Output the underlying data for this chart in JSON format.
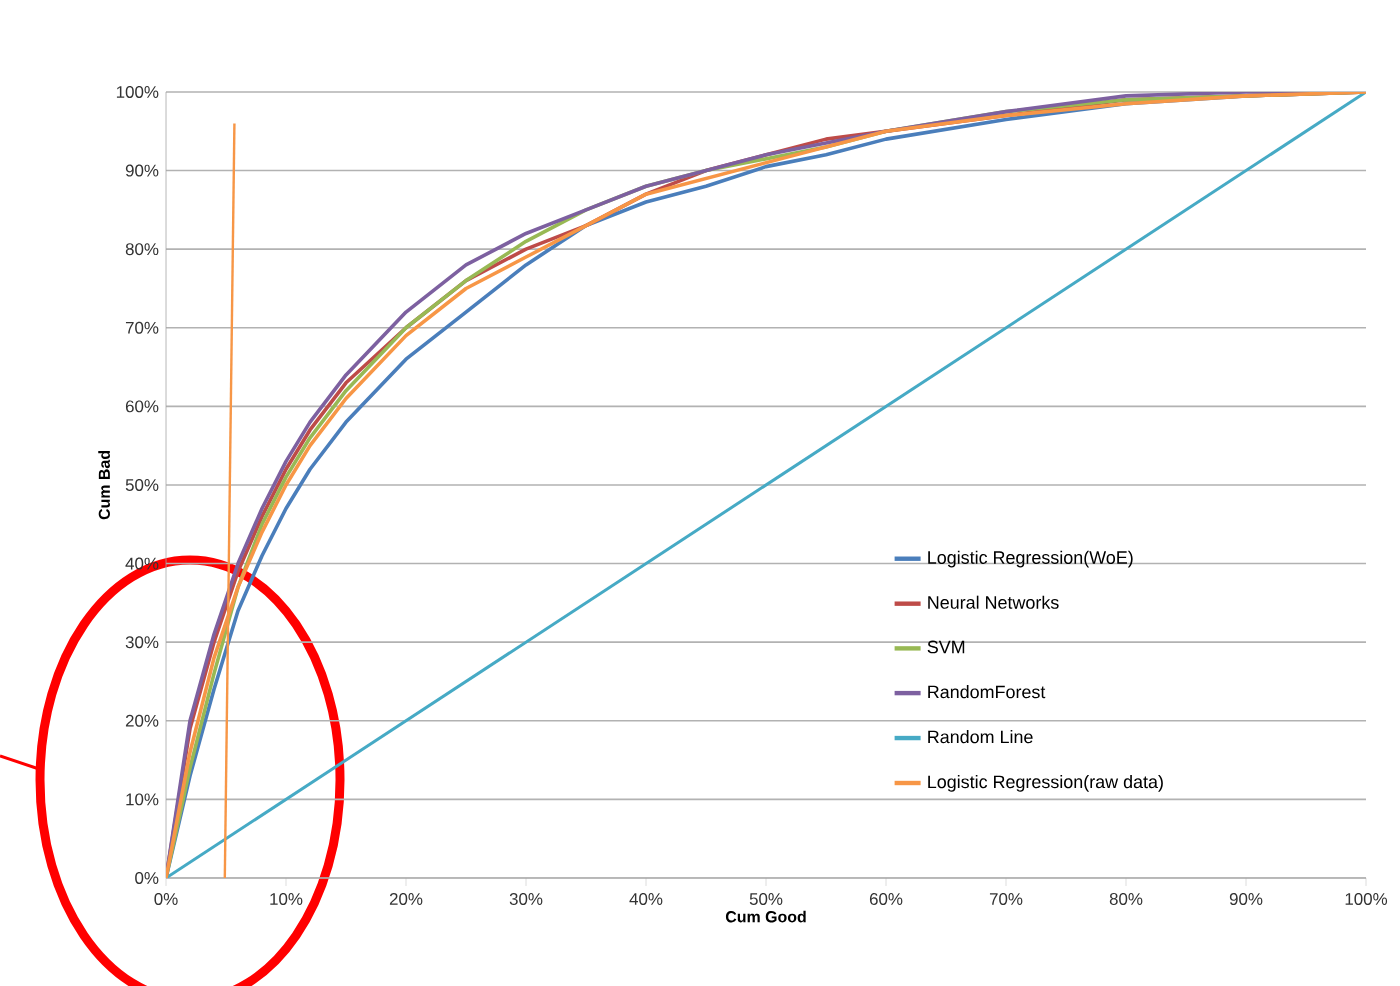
{
  "chart_data": {
    "type": "line",
    "xlabel": "Cum Good",
    "ylabel": "Cum Bad",
    "xlim": [
      0,
      100
    ],
    "ylim": [
      0,
      100
    ],
    "xticks": [
      {
        "value": 0,
        "label": "0%"
      },
      {
        "value": 10,
        "label": "10%"
      },
      {
        "value": 20,
        "label": "20%"
      },
      {
        "value": 30,
        "label": "30%"
      },
      {
        "value": 40,
        "label": "40%"
      },
      {
        "value": 50,
        "label": "50%"
      },
      {
        "value": 60,
        "label": "60%"
      },
      {
        "value": 70,
        "label": "70%"
      },
      {
        "value": 80,
        "label": "80%"
      },
      {
        "value": 90,
        "label": "90%"
      },
      {
        "value": 100,
        "label": "100%"
      }
    ],
    "yticks": [
      {
        "value": 0,
        "label": "0%"
      },
      {
        "value": 10,
        "label": "10%"
      },
      {
        "value": 20,
        "label": "20%"
      },
      {
        "value": 30,
        "label": "30%"
      },
      {
        "value": 40,
        "label": "40%"
      },
      {
        "value": 50,
        "label": "50%"
      },
      {
        "value": 60,
        "label": "60%"
      },
      {
        "value": 70,
        "label": "70%"
      },
      {
        "value": 80,
        "label": "80%"
      },
      {
        "value": 90,
        "label": "90%"
      },
      {
        "value": 100,
        "label": "100%"
      }
    ],
    "x": [
      0,
      2,
      4,
      6,
      8,
      10,
      12,
      15,
      20,
      25,
      30,
      35,
      40,
      45,
      50,
      55,
      60,
      70,
      80,
      90,
      100
    ],
    "series": [
      {
        "name": "Logistic Regression(WoE)",
        "color": "#4a7ebb",
        "values": [
          0,
          13,
          24,
          34,
          41,
          47,
          52,
          58,
          66,
          72,
          78,
          83,
          86,
          88,
          90.5,
          92,
          94,
          96.5,
          98.5,
          99.5,
          100
        ]
      },
      {
        "name": "Neural Networks",
        "color": "#be4b48",
        "values": [
          0,
          19,
          30,
          39,
          46,
          52,
          57,
          63,
          70,
          76,
          80,
          83,
          87,
          90,
          92,
          94,
          95,
          97,
          99,
          99.5,
          100
        ]
      },
      {
        "name": "SVM",
        "color": "#98b954",
        "values": [
          0,
          14,
          26,
          37,
          45,
          51,
          56,
          62,
          70,
          76,
          81,
          85,
          88,
          90,
          91.5,
          93,
          95,
          97.5,
          99,
          99.5,
          100
        ]
      },
      {
        "name": "RandomForest",
        "color": "#7d60a0",
        "values": [
          0,
          20,
          31,
          40,
          47,
          53,
          58,
          64,
          72,
          78,
          82,
          85,
          88,
          90,
          92,
          93.5,
          95,
          97.5,
          99.5,
          100,
          100
        ]
      },
      {
        "name": "Random Line",
        "color": "#46aac5",
        "x": [
          0,
          100
        ],
        "values": [
          0,
          100
        ]
      },
      {
        "name": "Logistic Regression(raw data)",
        "color": "#f79646",
        "values": [
          0,
          16,
          28,
          37,
          44,
          50,
          55,
          61,
          69,
          75,
          79,
          83,
          87,
          89,
          91,
          93,
          95,
          97,
          98.5,
          99.5,
          100
        ]
      },
      {
        "color": "#f79646",
        "x": [
          4.9,
          5.7
        ],
        "values": [
          0,
          96
        ]
      }
    ],
    "grid": "y",
    "legend": "right",
    "marker": "none",
    "line_style": "solid"
  }
}
